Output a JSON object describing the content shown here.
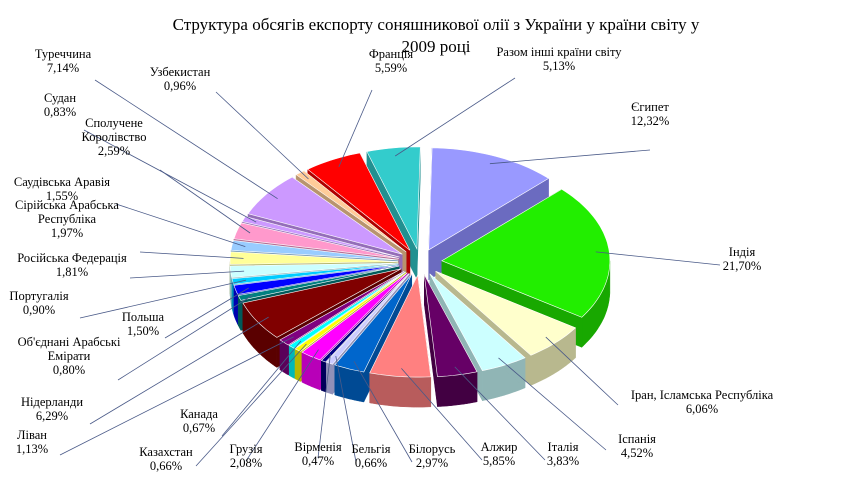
{
  "chart_data": {
    "type": "pie",
    "title": "Структура обсягів експорту соняшникової олії  з України у країни світу у 2009 році",
    "title_lines": [
      "Структура обсягів експорту соняшникової олії  з України у країни світу у",
      "2009 році"
    ],
    "style": "exploded 3D pie",
    "slices": [
      {
        "name": "Єгипет",
        "value": 12.32,
        "label": "12,32%",
        "color": "#9999ff",
        "side": "#6b6bc0"
      },
      {
        "name": "Індія",
        "value": 21.7,
        "label": "21,70%",
        "color": "#22ee00",
        "side": "#18a800"
      },
      {
        "name": "Іран, Ісламська Республіка",
        "value": 6.06,
        "label": "6,06%",
        "color": "#ffffcc",
        "side": "#b8b88e"
      },
      {
        "name": "Іспанія",
        "value": 4.52,
        "label": "4,52%",
        "color": "#ccffff",
        "side": "#90b5b5"
      },
      {
        "name": "Італія",
        "value": 3.83,
        "label": "3,83%",
        "color": "#660066",
        "side": "#420042"
      },
      {
        "name": "Алжир",
        "value": 5.85,
        "label": "5,85%",
        "color": "#ff8080",
        "side": "#b85c5c"
      },
      {
        "name": "Білорусь",
        "value": 2.97,
        "label": "2,97%",
        "color": "#0066cc",
        "side": "#004a94"
      },
      {
        "name": "Бельгія",
        "value": 0.66,
        "label": "0,66%",
        "color": "#ccccff",
        "side": "#9090b8"
      },
      {
        "name": "Вірменія",
        "value": 0.47,
        "label": "0,47%",
        "color": "#000080",
        "side": "#00005a"
      },
      {
        "name": "Грузія",
        "value": 2.08,
        "label": "2,08%",
        "color": "#ff00ff",
        "side": "#b800b8"
      },
      {
        "name": "Казахстан",
        "value": 0.66,
        "label": "0,66%",
        "color": "#ffff00",
        "side": "#b8b800"
      },
      {
        "name": "Канада",
        "value": 0.67,
        "label": "0,67%",
        "color": "#00ffff",
        "side": "#00b8b8"
      },
      {
        "name": "Ліван",
        "value": 1.13,
        "label": "1,13%",
        "color": "#800080",
        "side": "#5a005a"
      },
      {
        "name": "Нідерланди",
        "value": 6.29,
        "label": "6,29%",
        "color": "#800000",
        "side": "#5a0000"
      },
      {
        "name": "Об'єднані Арабські Емірати",
        "value": 0.8,
        "label": "0,80%",
        "color": "#008080",
        "side": "#005a5a"
      },
      {
        "name": "Польша",
        "value": 1.5,
        "label": "1,50%",
        "color": "#0000ff",
        "side": "#0000b0"
      },
      {
        "name": "Португалія",
        "value": 0.9,
        "label": "0,90%",
        "color": "#00ccff",
        "side": "#0090b8"
      },
      {
        "name": "Російська Федерація",
        "value": 1.81,
        "label": "1,81%",
        "color": "#ccffff",
        "side": "#90b8b8"
      },
      {
        "name": "Сірійська Арабська Республіка",
        "value": 1.97,
        "label": "1,97%",
        "color": "#ffff99",
        "side": "#b8b86e"
      },
      {
        "name": "Саудівська Аравія",
        "value": 1.55,
        "label": "1,55%",
        "color": "#99ccff",
        "side": "#6e94b8"
      },
      {
        "name": "Сполучене Королівство",
        "value": 2.59,
        "label": "2,59%",
        "color": "#ff99cc",
        "side": "#b86e94"
      },
      {
        "name": "Судан",
        "value": 0.83,
        "label": "0,83%",
        "color": "#cc99ff",
        "side": "#946eb8"
      },
      {
        "name": "Туреччина",
        "value": 7.14,
        "label": "7,14%",
        "color": "#cc99ff",
        "side": "#946eb8"
      },
      {
        "name": "Узбекистан",
        "value": 0.96,
        "label": "0,96%",
        "color": "#ffcc99",
        "side": "#b8946e"
      },
      {
        "name": "Франція",
        "value": 5.59,
        "label": "5,59%",
        "color": "#ff0000",
        "side": "#b00000"
      },
      {
        "name": "Разом інші країни світу",
        "value": 5.13,
        "label": "5,13%",
        "color": "#33cccc",
        "side": "#229090"
      }
    ]
  }
}
